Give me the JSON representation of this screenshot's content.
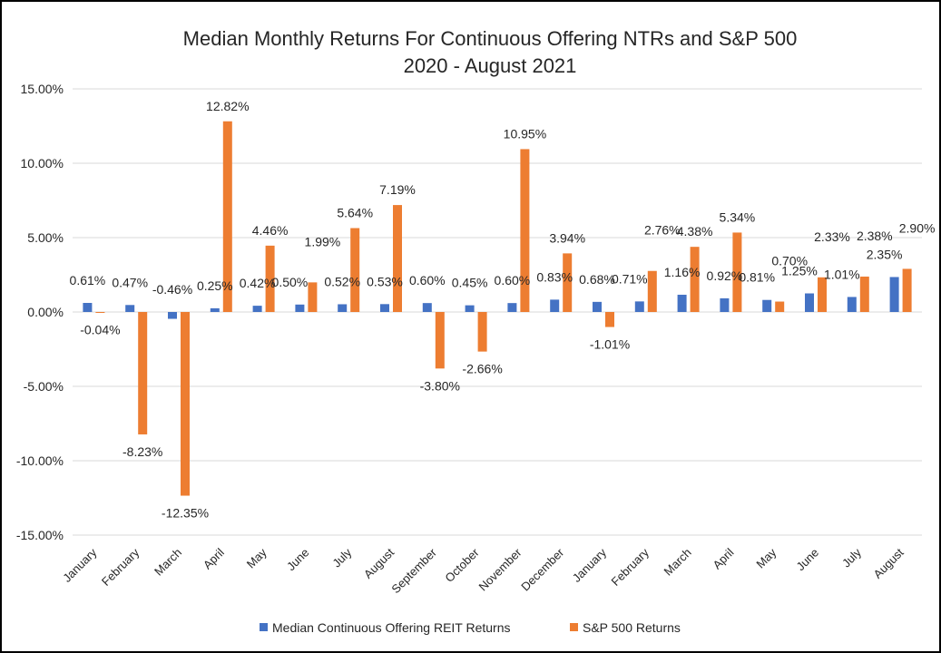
{
  "chart_data": {
    "type": "bar",
    "title": "Median Monthly Returns For Continuous Offering NTRs and S&P 500",
    "subtitle": "2020 - August 2021",
    "xlabel": "",
    "ylabel": "",
    "ylim": [
      -15,
      15
    ],
    "yticks": [
      15,
      10,
      5,
      0,
      -5,
      -10,
      -15
    ],
    "ytick_labels": [
      "15.00%",
      "10.00%",
      "5.00%",
      "0.00%",
      "-5.00%",
      "-10.00%",
      "-15.00%"
    ],
    "grid": true,
    "legend_position": "bottom",
    "categories": [
      "January",
      "February",
      "March",
      "April",
      "May",
      "June",
      "July",
      "August",
      "September",
      "October",
      "November",
      "December",
      "January",
      "February",
      "March",
      "April",
      "May",
      "June",
      "July",
      "August"
    ],
    "series": [
      {
        "name": "Median Continuous Offering REIT Returns",
        "color": "#4472c4",
        "values": [
          0.61,
          0.47,
          -0.46,
          0.25,
          0.42,
          0.5,
          0.52,
          0.53,
          0.6,
          0.45,
          0.6,
          0.83,
          0.68,
          0.71,
          1.16,
          0.92,
          0.81,
          1.25,
          1.01,
          2.35
        ],
        "labels": [
          "0.61%",
          "0.47%",
          "-0.46%",
          "0.25%",
          "0.42%",
          "0.50%",
          "0.52%",
          "0.53%",
          "0.60%",
          "0.45%",
          "0.60%",
          "0.83%",
          "0.68%",
          "0.71%",
          "1.16%",
          "0.92%",
          "0.81%",
          "1.25%",
          "1.01%",
          "2.35%"
        ]
      },
      {
        "name": "S&P 500 Returns",
        "color": "#ed7d31",
        "values": [
          -0.04,
          -8.23,
          -12.35,
          12.82,
          4.46,
          1.99,
          5.64,
          7.19,
          -3.8,
          -2.66,
          10.95,
          3.94,
          -1.01,
          2.76,
          4.38,
          5.34,
          0.7,
          2.33,
          2.38,
          2.9
        ],
        "labels": [
          "-0.04%",
          "-8.23%",
          "-12.35%",
          "12.82%",
          "4.46%",
          "1.99%",
          "5.64%",
          "7.19%",
          "-3.80%",
          "-2.66%",
          "10.95%",
          "3.94%",
          "-1.01%",
          "2.76%",
          "4.38%",
          "5.34%",
          "0.70%",
          "2.33%",
          "2.38%",
          "2.90%"
        ]
      }
    ]
  }
}
